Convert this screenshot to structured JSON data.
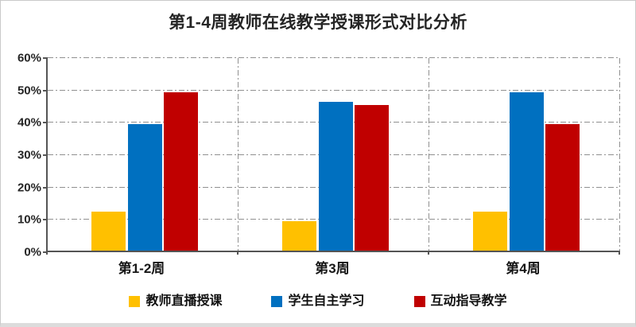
{
  "title": "第1-4周教师在线教学授课形式对比分析",
  "chart_data": {
    "type": "bar",
    "title": "第1-4周教师在线教学授课形式对比分析",
    "categories": [
      "第1-2周",
      "第3周",
      "第4周"
    ],
    "series": [
      {
        "name": "教师直播授课",
        "color": "#FFC000",
        "values": [
          12,
          9,
          12
        ]
      },
      {
        "name": "学生自主学习",
        "color": "#0070C0",
        "values": [
          39,
          46,
          49
        ]
      },
      {
        "name": "互动指导教学",
        "color": "#C00000",
        "values": [
          49,
          45,
          39
        ]
      }
    ],
    "xlabel": "",
    "ylabel": "",
    "ylim": [
      0,
      60
    ],
    "ytick_labels": [
      "0%",
      "10%",
      "20%",
      "30%",
      "40%",
      "50%",
      "60%"
    ],
    "grid": "horizontal dash-dot lines every 10%, vertical dash-dot lines at category boundaries",
    "legend_position": "bottom",
    "axis_color": "#555555",
    "gridline_color": "#909090"
  }
}
